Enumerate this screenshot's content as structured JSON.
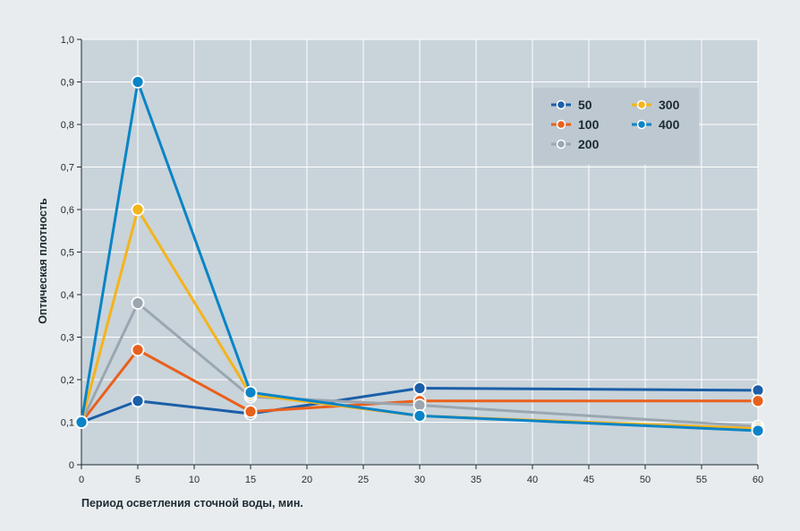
{
  "chart_data": {
    "type": "line",
    "xlabel": "Период осветления сточной воды, мин.",
    "ylabel": "Оптическая плотность",
    "xlim": [
      0,
      60
    ],
    "ylim": [
      0,
      1.0
    ],
    "x_ticks": [
      "0",
      "5",
      "10",
      "15",
      "20",
      "25",
      "30",
      "35",
      "40",
      "45",
      "50",
      "55",
      "60"
    ],
    "y_ticks": [
      "0",
      "0,1",
      "0,2",
      "0,3",
      "0,4",
      "0,5",
      "0,6",
      "0,7",
      "0,8",
      "0,9",
      "1,0"
    ],
    "grid": true,
    "legend_position": "top-right",
    "x": [
      0,
      5,
      15,
      30,
      60
    ],
    "series": [
      {
        "name": "50",
        "color": "#1a5fa8",
        "values": [
          0.1,
          0.15,
          0.12,
          0.18,
          0.175
        ]
      },
      {
        "name": "100",
        "color": "#e8601c",
        "values": [
          0.1,
          0.27,
          0.125,
          0.15,
          0.15
        ]
      },
      {
        "name": "200",
        "color": "#9aa7b1",
        "values": [
          0.1,
          0.38,
          0.16,
          0.14,
          0.09
        ]
      },
      {
        "name": "300",
        "color": "#f4b41a",
        "values": [
          0.1,
          0.6,
          0.165,
          0.115,
          0.085
        ]
      },
      {
        "name": "400",
        "color": "#0a84c6",
        "values": [
          0.1,
          0.9,
          0.17,
          0.115,
          0.08
        ]
      }
    ],
    "colors": {
      "plot_bg": "#c9d3da",
      "grid": "#ffffff",
      "page_bg": "#e8ecee",
      "legend_bg": "#bdc8d0"
    }
  }
}
